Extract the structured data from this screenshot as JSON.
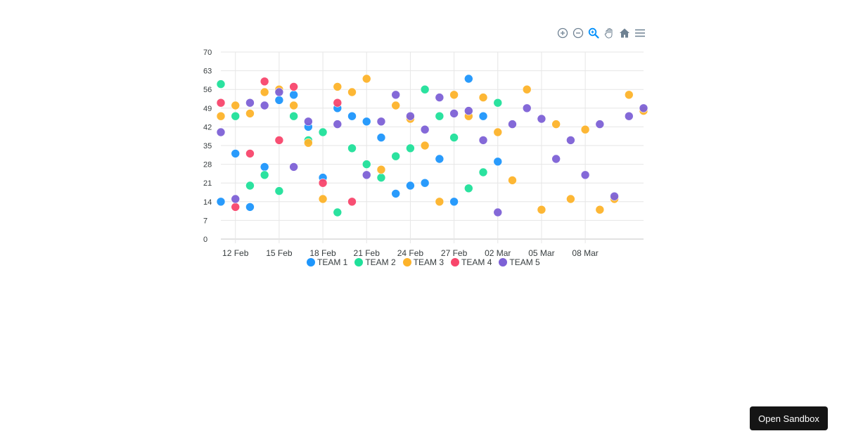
{
  "toolbar": {
    "icons": [
      "zoom-in-icon",
      "zoom-out-icon",
      "zoom-selection-icon",
      "pan-hand-icon",
      "home-reset-icon",
      "menu-icon"
    ],
    "active": "zoom-selection-icon"
  },
  "sandbox_button": {
    "label": "Open Sandbox"
  },
  "colors": {
    "TEAM 1": "#1e96fc",
    "TEAM 2": "#20e09a",
    "TEAM 3": "#fdb32a",
    "TEAM 4": "#f8466b",
    "TEAM 5": "#7d61d6",
    "grid": "#e6e6e6",
    "axis_text": "#373d3f",
    "toolbar_icon": "#6e8192",
    "toolbar_active": "#008ffb"
  },
  "legend": [
    {
      "label": "TEAM 1",
      "color": "#1e96fc"
    },
    {
      "label": "TEAM 2",
      "color": "#20e09a"
    },
    {
      "label": "TEAM 3",
      "color": "#fdb32a"
    },
    {
      "label": "TEAM 4",
      "color": "#f8466b"
    },
    {
      "label": "TEAM 5",
      "color": "#7d61d6"
    }
  ],
  "chart_data": {
    "type": "scatter",
    "title": "",
    "xlabel": "",
    "ylabel": "",
    "ylim": [
      0,
      70
    ],
    "yticks": [
      0,
      7,
      14,
      21,
      28,
      35,
      42,
      49,
      56,
      63,
      70
    ],
    "xtick_labels": [
      "12 Feb",
      "15 Feb",
      "18 Feb",
      "21 Feb",
      "24 Feb",
      "27 Feb",
      "02 Mar",
      "05 Mar",
      "08 Mar"
    ],
    "x_range": [
      "11 Feb",
      "12 Mar"
    ],
    "grid": true,
    "legend_position": "bottom",
    "series": [
      {
        "name": "TEAM 1",
        "points": [
          [
            "11 Feb",
            14
          ],
          [
            "12 Feb",
            32
          ],
          [
            "13 Feb",
            12
          ],
          [
            "14 Feb",
            27
          ],
          [
            "15 Feb",
            52
          ],
          [
            "16 Feb",
            54
          ],
          [
            "17 Feb",
            42
          ],
          [
            "18 Feb",
            23
          ],
          [
            "19 Feb",
            49
          ],
          [
            "20 Feb",
            46
          ],
          [
            "21 Feb",
            44
          ],
          [
            "22 Feb",
            38
          ],
          [
            "23 Feb",
            17
          ],
          [
            "24 Feb",
            20
          ],
          [
            "25 Feb",
            21
          ],
          [
            "26 Feb",
            30
          ],
          [
            "27 Feb",
            14
          ],
          [
            "28 Feb",
            60
          ],
          [
            "01 Mar",
            46
          ],
          [
            "02 Mar",
            29
          ]
        ]
      },
      {
        "name": "TEAM 2",
        "points": [
          [
            "11 Feb",
            58
          ],
          [
            "12 Feb",
            46
          ],
          [
            "13 Feb",
            20
          ],
          [
            "14 Feb",
            24
          ],
          [
            "15 Feb",
            18
          ],
          [
            "16 Feb",
            46
          ],
          [
            "17 Feb",
            37
          ],
          [
            "18 Feb",
            40
          ],
          [
            "19 Feb",
            10
          ],
          [
            "20 Feb",
            34
          ],
          [
            "21 Feb",
            28
          ],
          [
            "22 Feb",
            23
          ],
          [
            "23 Feb",
            31
          ],
          [
            "24 Feb",
            34
          ],
          [
            "25 Feb",
            56
          ],
          [
            "26 Feb",
            46
          ],
          [
            "27 Feb",
            38
          ],
          [
            "28 Feb",
            19
          ],
          [
            "01 Mar",
            25
          ],
          [
            "02 Mar",
            51
          ]
        ]
      },
      {
        "name": "TEAM 3",
        "points": [
          [
            "11 Feb",
            46
          ],
          [
            "12 Feb",
            50
          ],
          [
            "13 Feb",
            47
          ],
          [
            "14 Feb",
            55
          ],
          [
            "15 Feb",
            56
          ],
          [
            "16 Feb",
            50
          ],
          [
            "17 Feb",
            36
          ],
          [
            "18 Feb",
            15
          ],
          [
            "19 Feb",
            57
          ],
          [
            "20 Feb",
            55
          ],
          [
            "21 Feb",
            60
          ],
          [
            "22 Feb",
            26
          ],
          [
            "23 Feb",
            50
          ],
          [
            "24 Feb",
            45
          ],
          [
            "25 Feb",
            35
          ],
          [
            "26 Feb",
            14
          ],
          [
            "27 Feb",
            54
          ],
          [
            "28 Feb",
            46
          ],
          [
            "01 Mar",
            53
          ],
          [
            "02 Mar",
            40
          ],
          [
            "03 Mar",
            22
          ],
          [
            "04 Mar",
            56
          ],
          [
            "05 Mar",
            11
          ],
          [
            "06 Mar",
            43
          ],
          [
            "07 Mar",
            15
          ],
          [
            "08 Mar",
            41
          ],
          [
            "09 Mar",
            11
          ],
          [
            "10 Mar",
            15
          ],
          [
            "11 Mar",
            54
          ],
          [
            "12 Mar",
            48
          ]
        ]
      },
      {
        "name": "TEAM 4",
        "points": [
          [
            "11 Feb",
            51
          ],
          [
            "12 Feb",
            12
          ],
          [
            "13 Feb",
            32
          ],
          [
            "14 Feb",
            59
          ],
          [
            "15 Feb",
            37
          ],
          [
            "16 Feb",
            57
          ],
          [
            "18 Feb",
            21
          ],
          [
            "19 Feb",
            51
          ],
          [
            "20 Feb",
            14
          ]
        ]
      },
      {
        "name": "TEAM 5",
        "points": [
          [
            "11 Feb",
            40
          ],
          [
            "12 Feb",
            15
          ],
          [
            "13 Feb",
            51
          ],
          [
            "14 Feb",
            50
          ],
          [
            "15 Feb",
            55
          ],
          [
            "16 Feb",
            27
          ],
          [
            "17 Feb",
            44
          ],
          [
            "19 Feb",
            43
          ],
          [
            "21 Feb",
            24
          ],
          [
            "22 Feb",
            44
          ],
          [
            "23 Feb",
            54
          ],
          [
            "24 Feb",
            46
          ],
          [
            "25 Feb",
            41
          ],
          [
            "26 Feb",
            53
          ],
          [
            "27 Feb",
            47
          ],
          [
            "28 Feb",
            48
          ],
          [
            "01 Mar",
            37
          ],
          [
            "02 Mar",
            10
          ],
          [
            "03 Mar",
            43
          ],
          [
            "04 Mar",
            49
          ],
          [
            "05 Mar",
            45
          ],
          [
            "06 Mar",
            30
          ],
          [
            "07 Mar",
            37
          ],
          [
            "08 Mar",
            24
          ],
          [
            "09 Mar",
            43
          ],
          [
            "10 Mar",
            16
          ],
          [
            "11 Mar",
            46
          ],
          [
            "12 Mar",
            49
          ]
        ]
      }
    ]
  }
}
